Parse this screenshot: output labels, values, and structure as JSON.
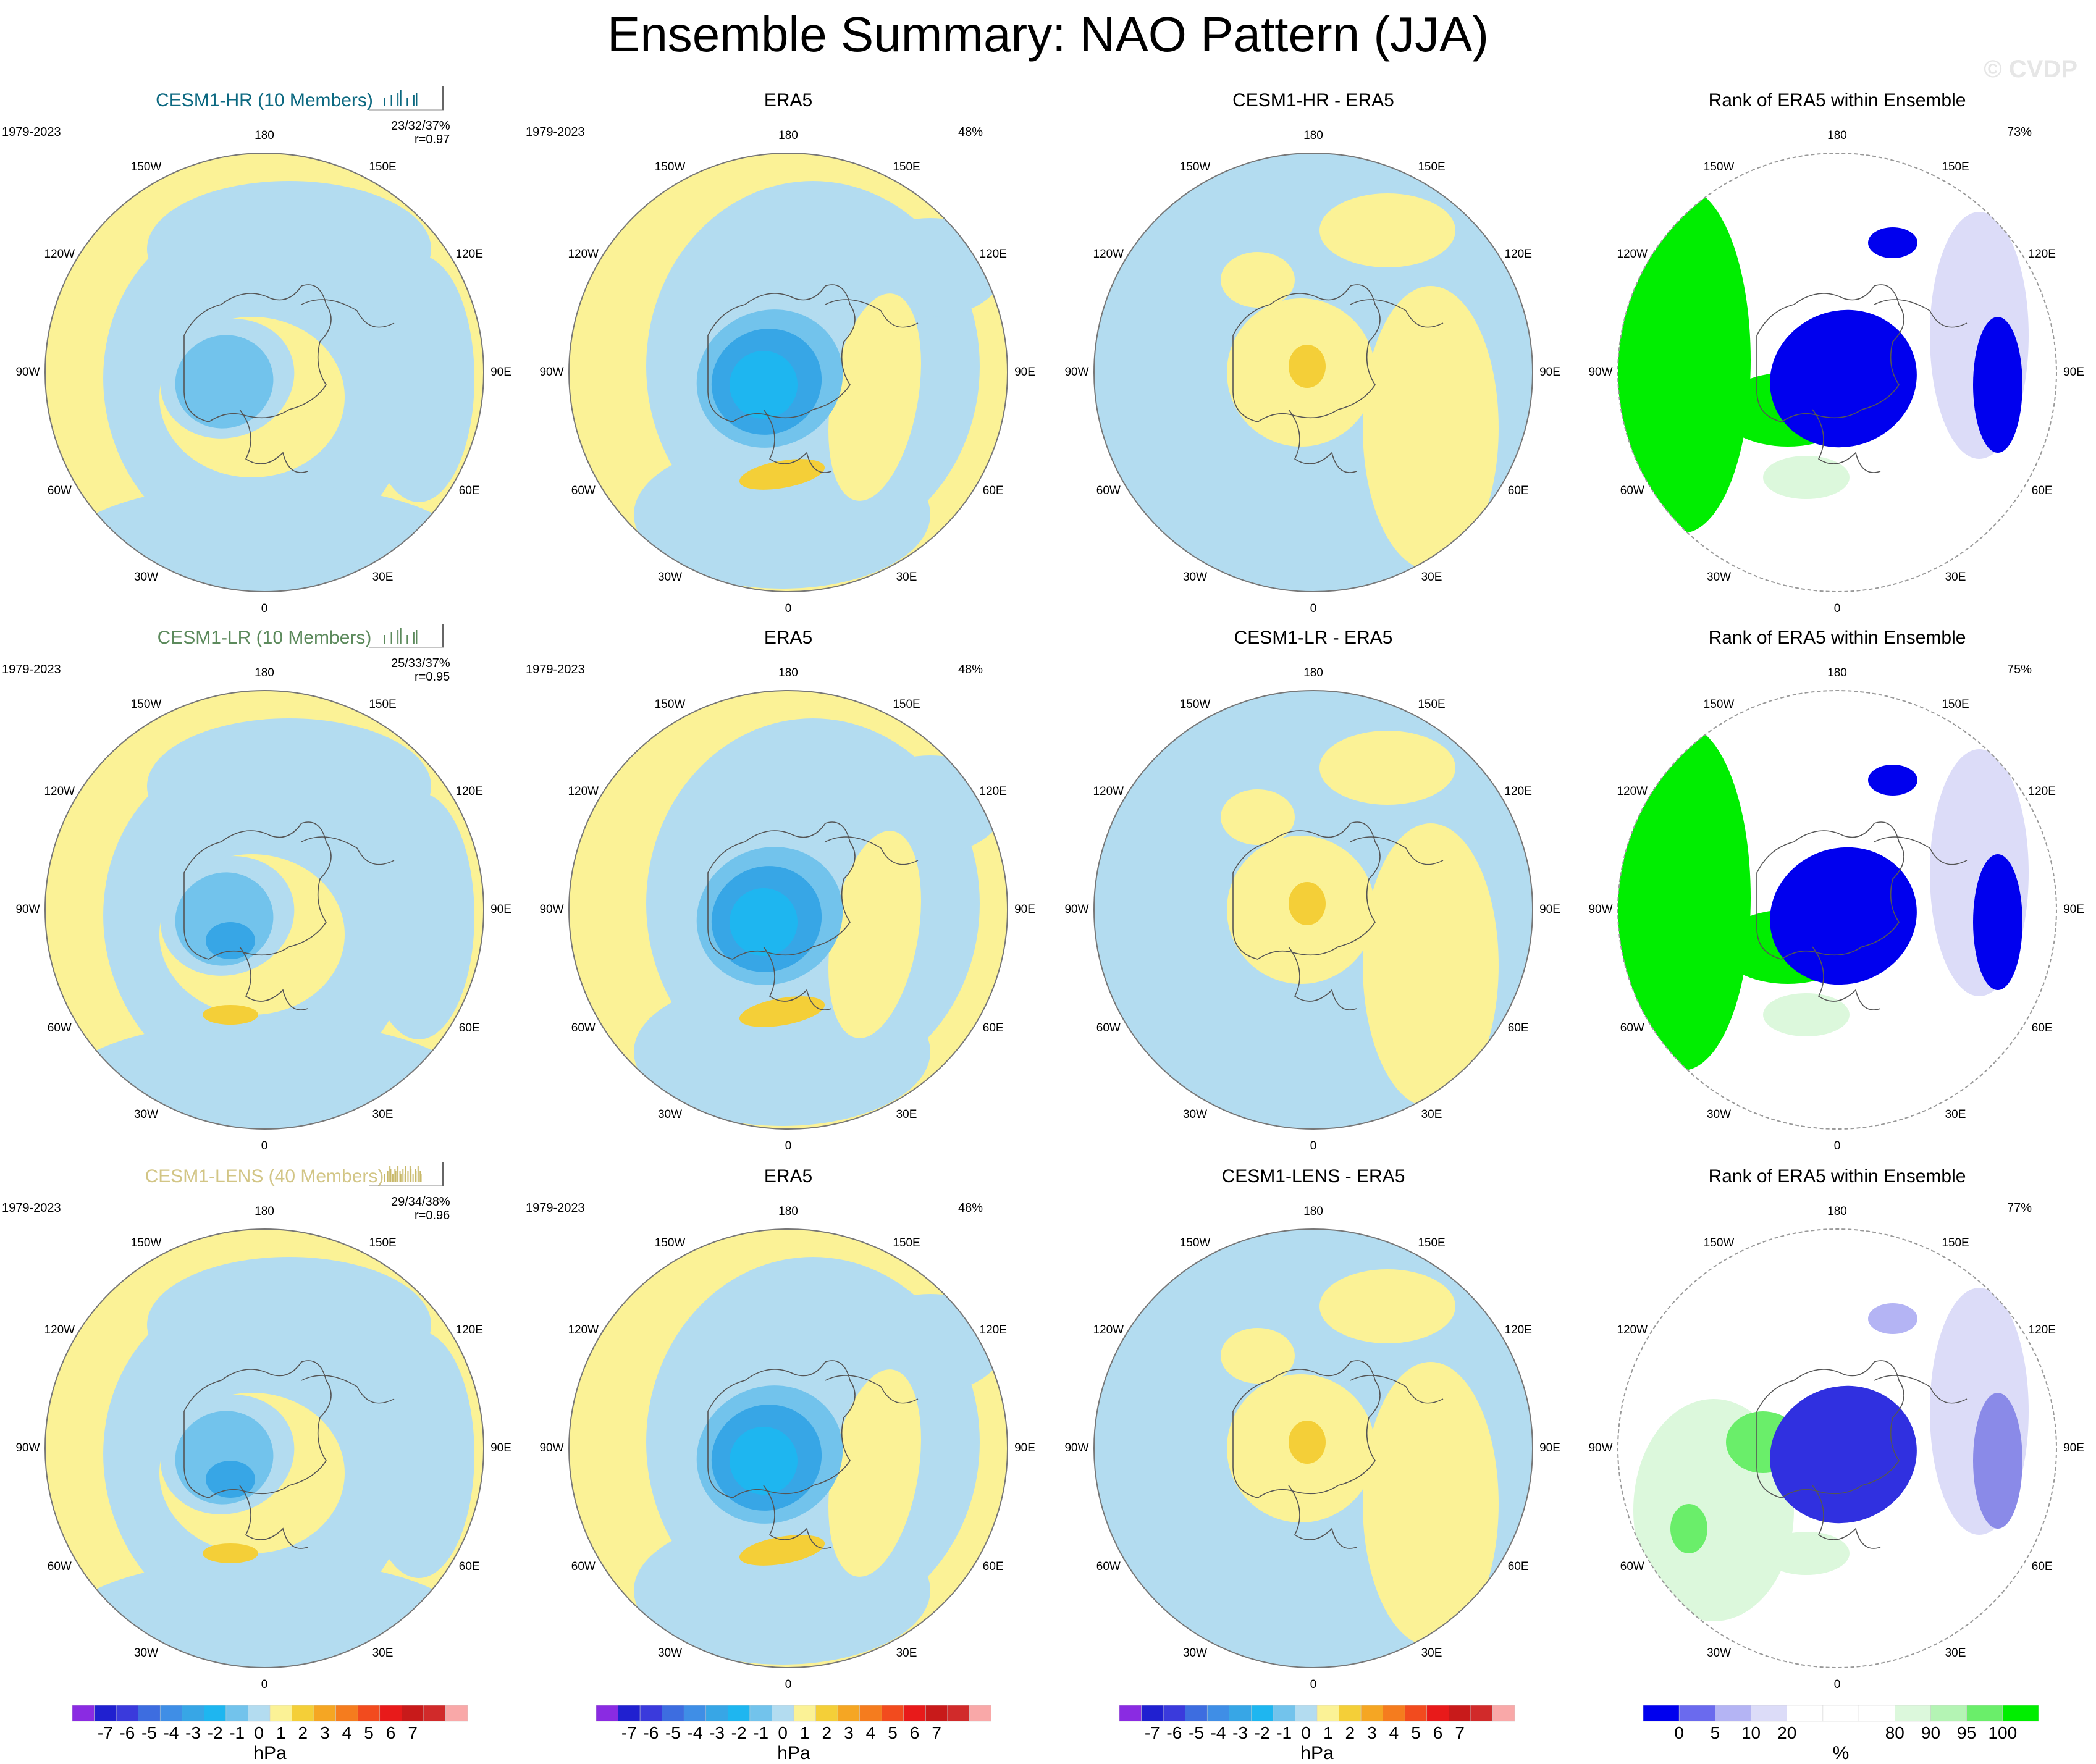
{
  "page": {
    "title": "Ensemble Summary: NAO Pattern (JJA)",
    "watermark": "© CVDP"
  },
  "colors": {
    "sea": "#b3dcf0",
    "land": "#fbf296",
    "neg1": "#72c3ec",
    "neg2": "#37a6e6",
    "pos1": "#f4cf38",
    "rank_green": "#00ee00",
    "rank_blue": "#0000ee",
    "rank_pale_blue": "#dcdcf8",
    "rank_pale_green": "#dcf8dc"
  },
  "grid_labels": [
    "180",
    "150E",
    "120E",
    "90E",
    "60E",
    "30E",
    "0",
    "30W",
    "60W",
    "90W",
    "120W",
    "150W"
  ],
  "rows": [
    {
      "model": {
        "title": "CESM1-HR (10 Members)",
        "title_color": "#0b6880",
        "period": "1979-2023",
        "stats": "23/32/37%",
        "corr": "r=0.97",
        "spike_color": "#0b6880"
      },
      "obs": {
        "title": "ERA5",
        "period": "1979-2023",
        "pct": "48%"
      },
      "diff": {
        "title": "CESM1-HR - ERA5"
      },
      "rank": {
        "title": "Rank of ERA5 within Ensemble",
        "pct": "73%"
      }
    },
    {
      "model": {
        "title": "CESM1-LR (10 Members)",
        "title_color": "#5c8a5c",
        "period": "1979-2023",
        "stats": "25/33/37%",
        "corr": "r=0.95",
        "spike_color": "#5c8a5c"
      },
      "obs": {
        "title": "ERA5",
        "period": "1979-2023",
        "pct": "48%"
      },
      "diff": {
        "title": "CESM1-LR - ERA5"
      },
      "rank": {
        "title": "Rank of ERA5 within Ensemble",
        "pct": "75%"
      }
    },
    {
      "model": {
        "title": "CESM1-LENS (40 Members)",
        "title_color": "#d2c585",
        "period": "1979-2023",
        "stats": "29/34/38%",
        "corr": "r=0.96",
        "spike_color": "#c8b868"
      },
      "obs": {
        "title": "ERA5",
        "period": "1979-2023",
        "pct": "48%"
      },
      "diff": {
        "title": "CESM1-LENS - ERA5"
      },
      "rank": {
        "title": "Rank of ERA5 within Ensemble",
        "pct": "77%"
      }
    }
  ],
  "colorbars": {
    "hpa": {
      "unit": "hPa",
      "labels": [
        "-7",
        "-6",
        "-5",
        "-4",
        "-3",
        "-2",
        "-1",
        "0",
        "1",
        "2",
        "3",
        "4",
        "5",
        "6",
        "7"
      ],
      "colors": [
        "#8a2be2",
        "#2020d0",
        "#3a3adc",
        "#3d6de0",
        "#3f8ee6",
        "#37a6e6",
        "#1eb6f0",
        "#72c3ec",
        "#b3dcf0",
        "#fbf296",
        "#f4cf38",
        "#f5a623",
        "#f57c1e",
        "#f24b1e",
        "#e81a1a",
        "#c81a1a",
        "#d12a2a",
        "#f9a8a8"
      ]
    },
    "rank": {
      "unit": "%",
      "labels": [
        "0",
        "5",
        "10",
        "20",
        "80",
        "90",
        "95",
        "100"
      ],
      "colors": [
        "#0000ee",
        "#6a6aee",
        "#b4b4f4",
        "#dcdcf8",
        "#ffffff",
        "#ffffff",
        "#ffffff",
        "#dcf8dc",
        "#b4f4b4",
        "#6aee6a",
        "#00ee00"
      ]
    }
  }
}
